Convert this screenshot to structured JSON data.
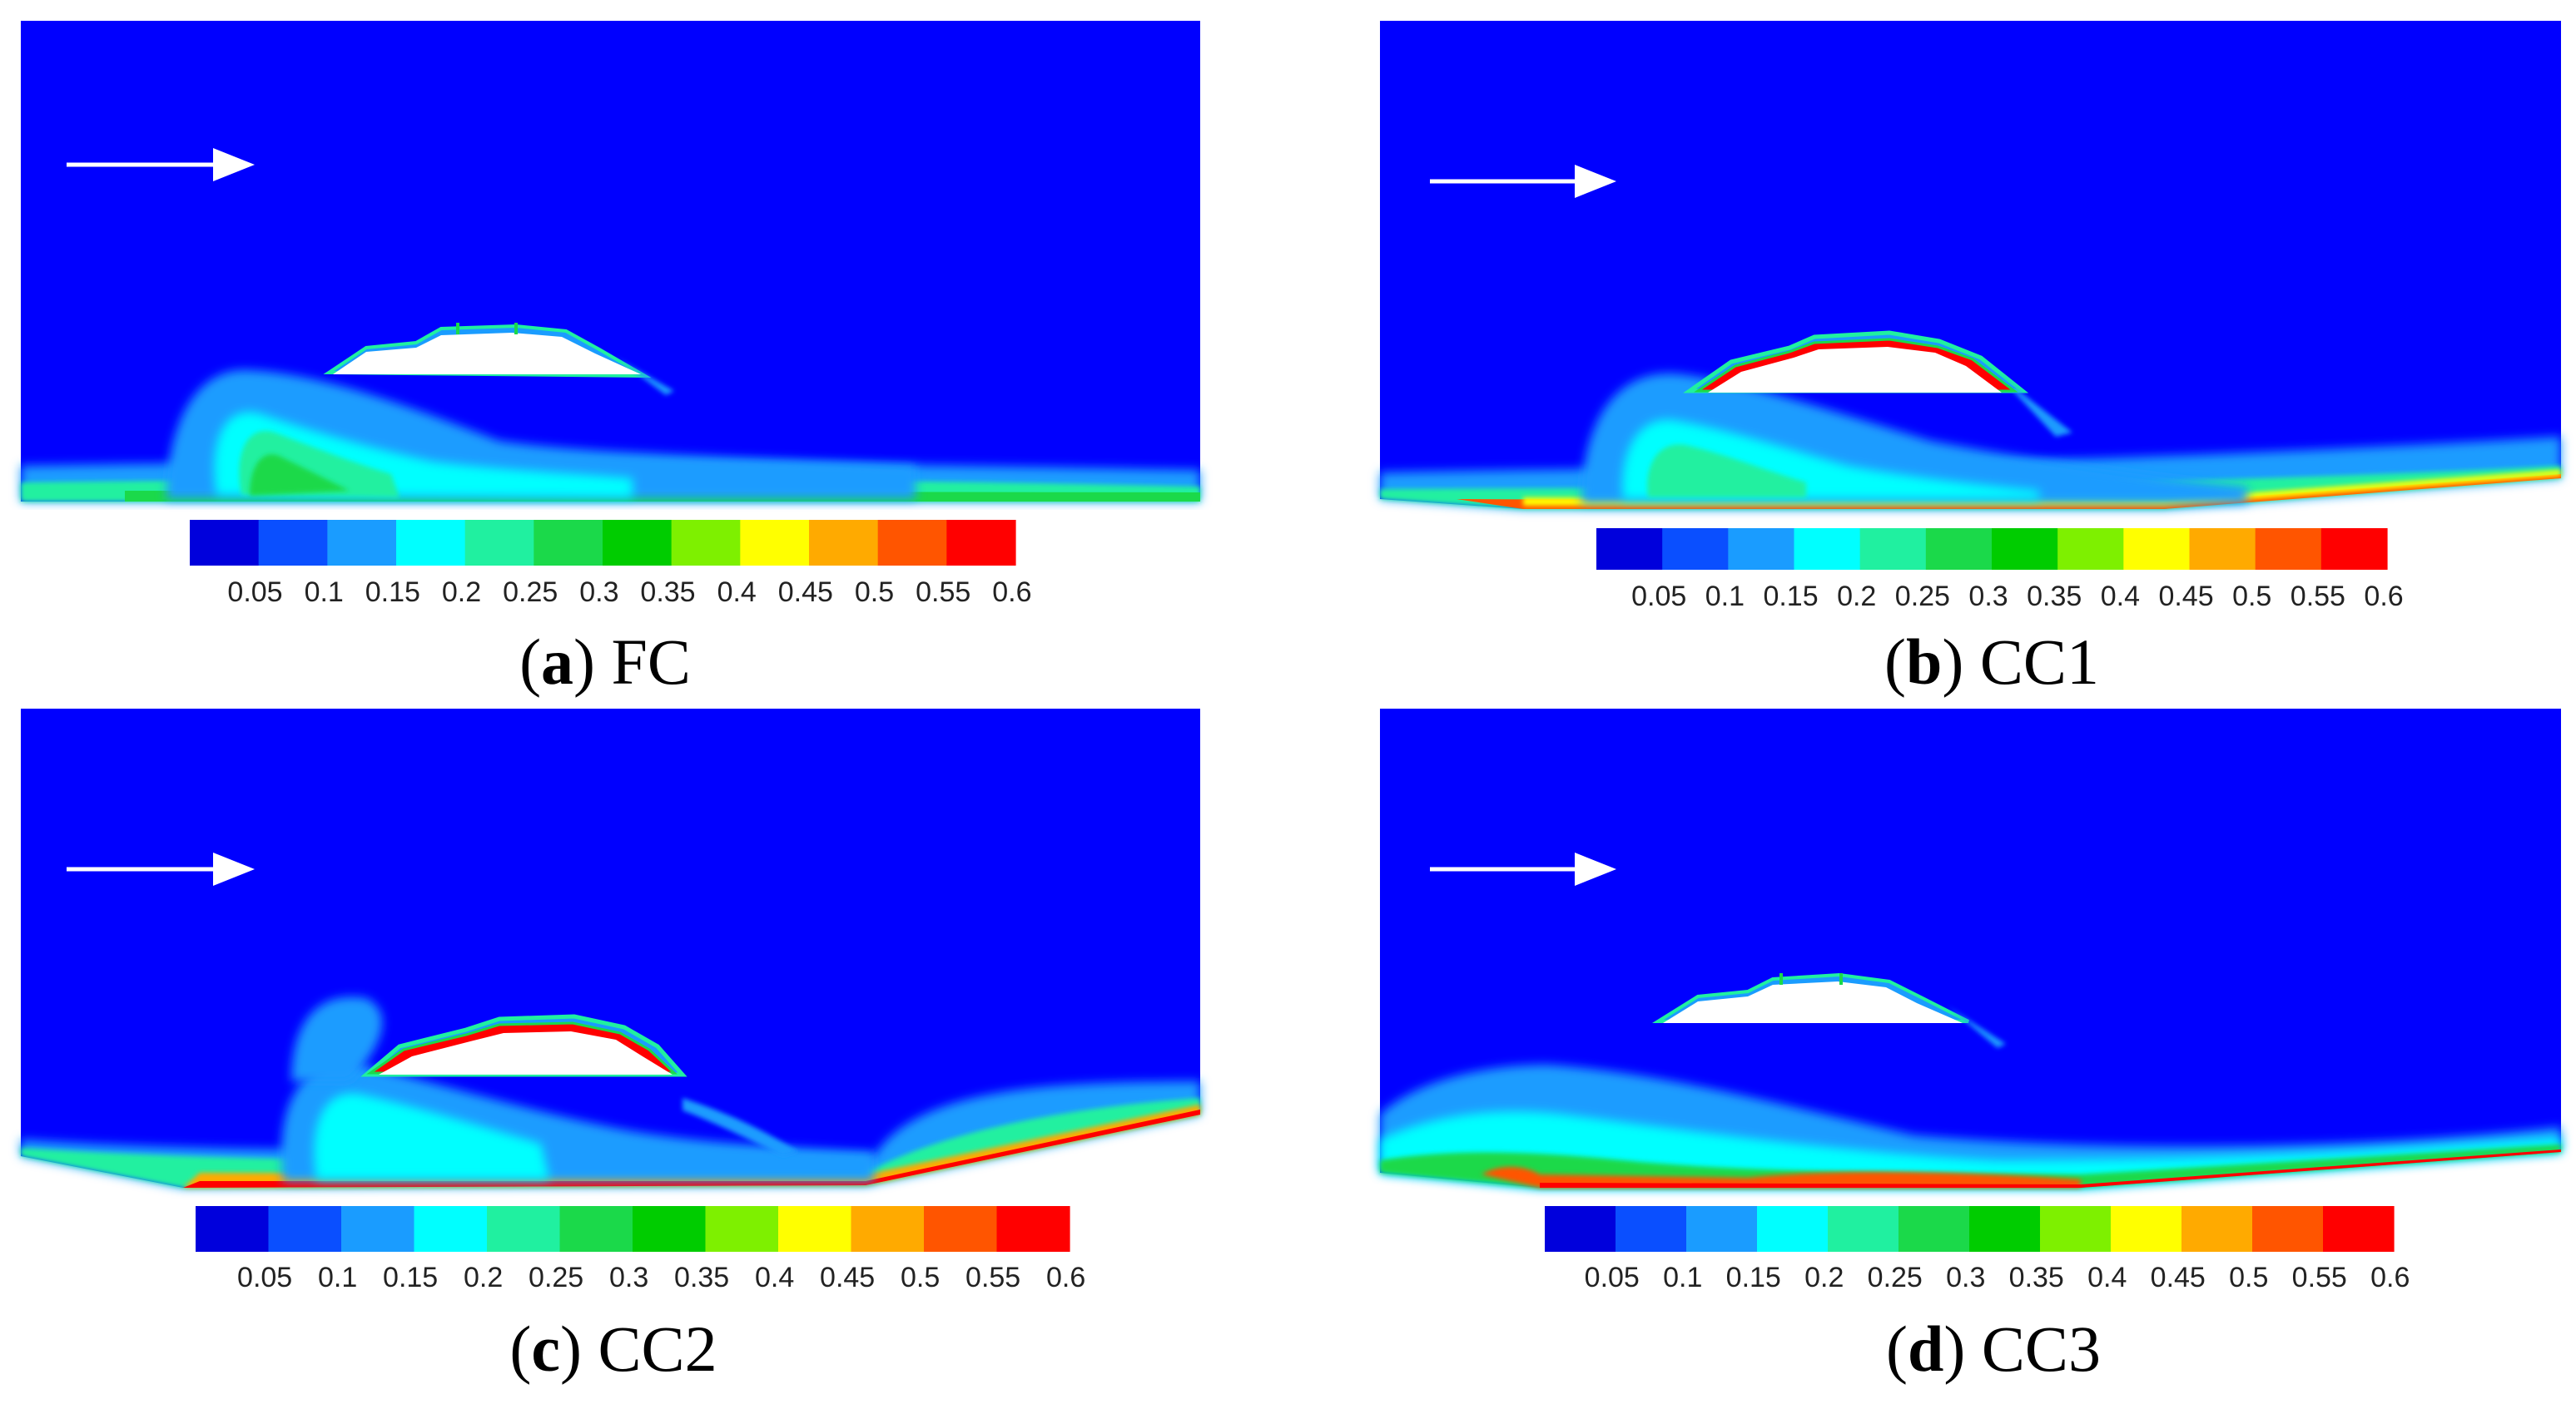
{
  "figure": {
    "colorbar": {
      "ticks": [
        "0.05",
        "0.1",
        "0.15",
        "0.2",
        "0.25",
        "0.3",
        "0.35",
        "0.4",
        "0.45",
        "0.5",
        "0.55",
        "0.6"
      ],
      "colors": [
        "#0000dc",
        "#0a4fff",
        "#1a9cff",
        "#00ffff",
        "#20f0a0",
        "#1bd94a",
        "#00cc00",
        "#7ef000",
        "#ffff00",
        "#ffaa00",
        "#ff5500",
        "#ff0000"
      ],
      "background_color": "#0000ff"
    },
    "arrow_color": "#ffffff"
  },
  "panels": [
    {
      "letter": "a",
      "name": "FC"
    },
    {
      "letter": "b",
      "name": "CC1"
    },
    {
      "letter": "c",
      "name": "CC2"
    },
    {
      "letter": "d",
      "name": "CC3"
    }
  ],
  "chart_data": {
    "type": "heatmap",
    "description_values": "Contour plots of a scalar field around a submerged body over four bed configurations",
    "colorbar_ticks": [
      0.05,
      0.1,
      0.15,
      0.2,
      0.25,
      0.3,
      0.35,
      0.4,
      0.45,
      0.5,
      0.55,
      0.6
    ],
    "colorbar_range": [
      0.0,
      0.6
    ],
    "panels": [
      "(a) FC",
      "(b) CC1",
      "(c) CC2",
      "(d) CC3"
    ]
  }
}
